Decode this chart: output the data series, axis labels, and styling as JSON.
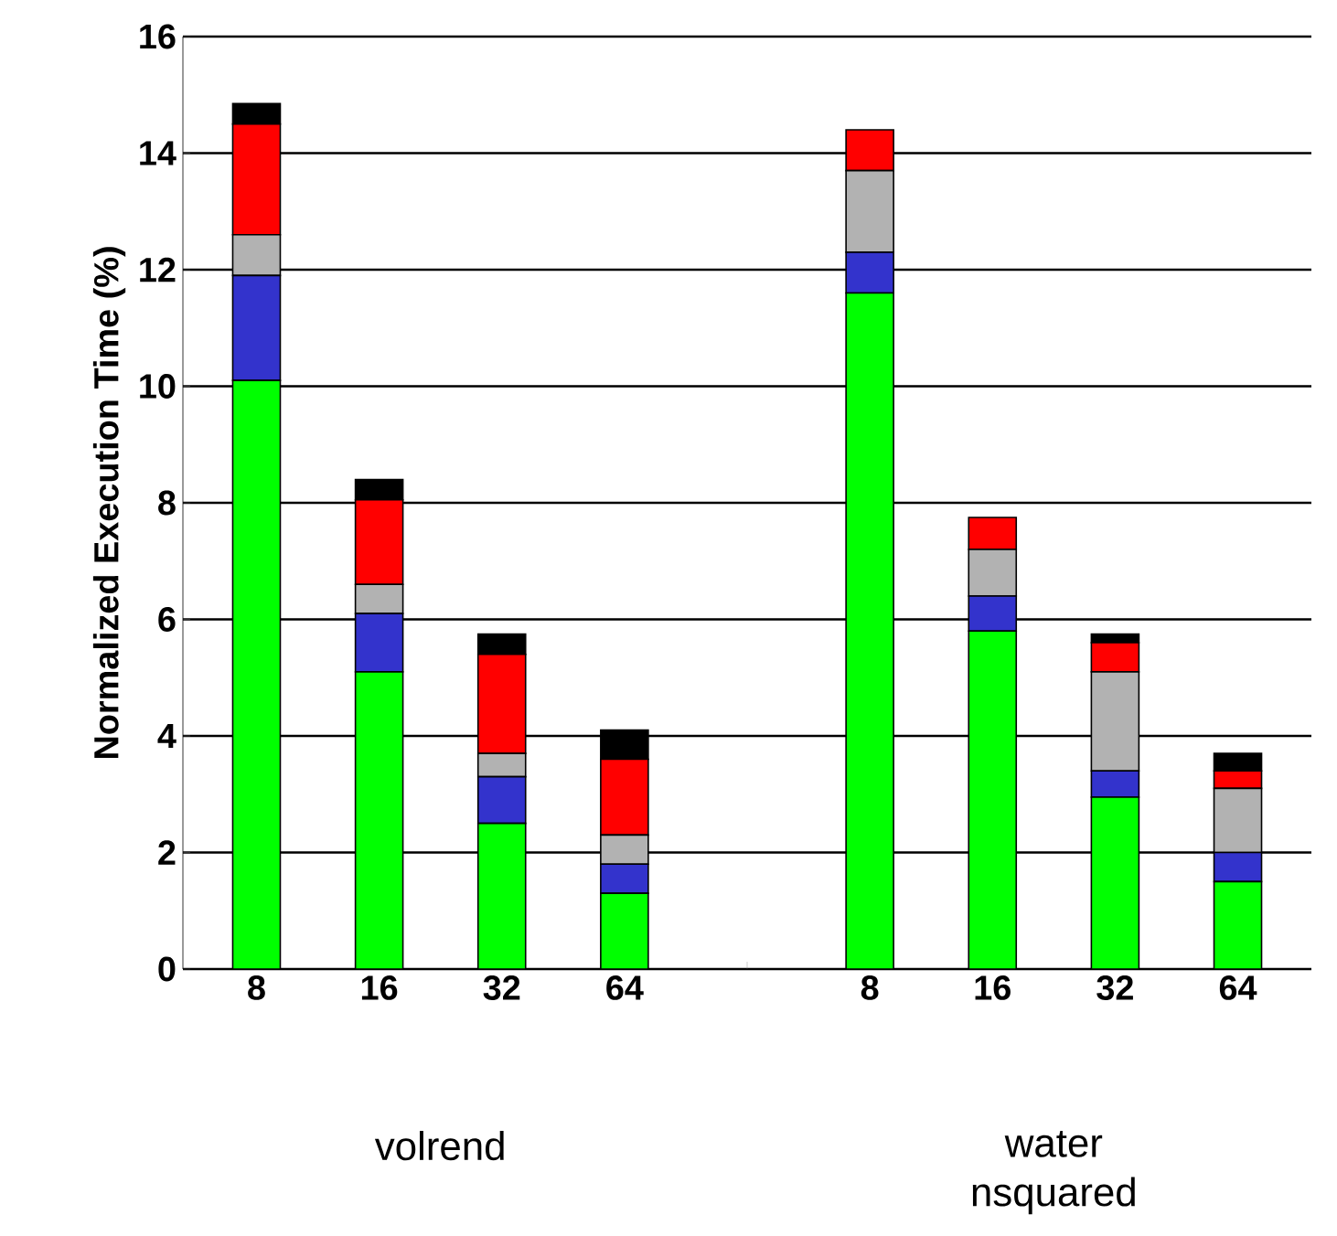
{
  "chart_data": {
    "type": "bar",
    "stacked": true,
    "ylabel": "Normalized Execution Time (%)",
    "categories": [
      "8",
      "16",
      "32",
      "64",
      null,
      "8",
      "16",
      "32",
      "64"
    ],
    "series": [
      {
        "color": "#00ff00",
        "values": [
          10.1,
          5.1,
          2.5,
          1.3,
          null,
          11.6,
          5.8,
          2.95,
          1.5
        ]
      },
      {
        "color": "#3333cc",
        "values": [
          1.8,
          1.0,
          0.8,
          0.5,
          null,
          0.7,
          0.6,
          0.45,
          0.5
        ]
      },
      {
        "color": "#b2b2b2",
        "values": [
          0.7,
          0.5,
          0.4,
          0.5,
          null,
          1.4,
          0.8,
          1.7,
          1.1
        ]
      },
      {
        "color": "#ff0000",
        "values": [
          1.9,
          1.45,
          1.7,
          1.3,
          null,
          0.7,
          0.55,
          0.5,
          0.3
        ]
      },
      {
        "color": "#000000",
        "values": [
          0.35,
          0.35,
          0.35,
          0.5,
          null,
          0,
          0,
          0.15,
          0.3
        ]
      }
    ],
    "ylim": [
      0,
      16
    ],
    "yticks": [
      0,
      2,
      4,
      6,
      8,
      10,
      12,
      14,
      16
    ],
    "grid": "y",
    "annotations": [
      "volrend",
      "water nsquared"
    ]
  }
}
